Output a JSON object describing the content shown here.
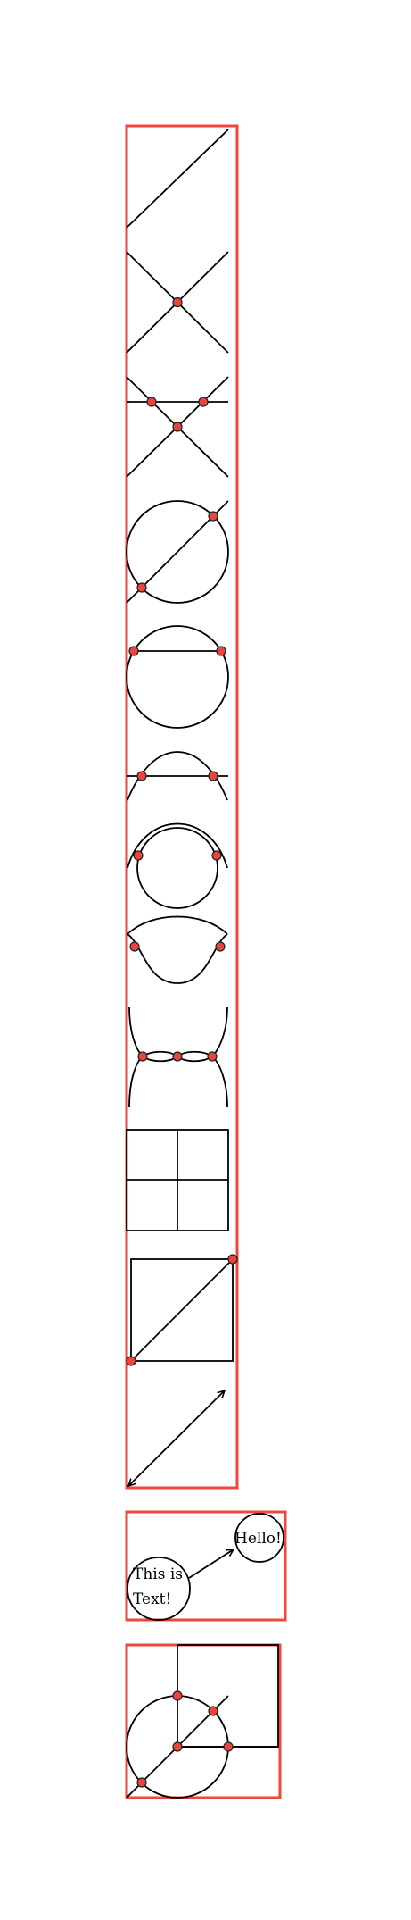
{
  "labels": {
    "bubble_left_line1": "This is",
    "bubble_left_line2": "Text!",
    "bubble_right": "Hello!"
  },
  "colors": {
    "frame": "#f0463d",
    "point_fill": "#e8453c",
    "stroke": "#000000"
  }
}
